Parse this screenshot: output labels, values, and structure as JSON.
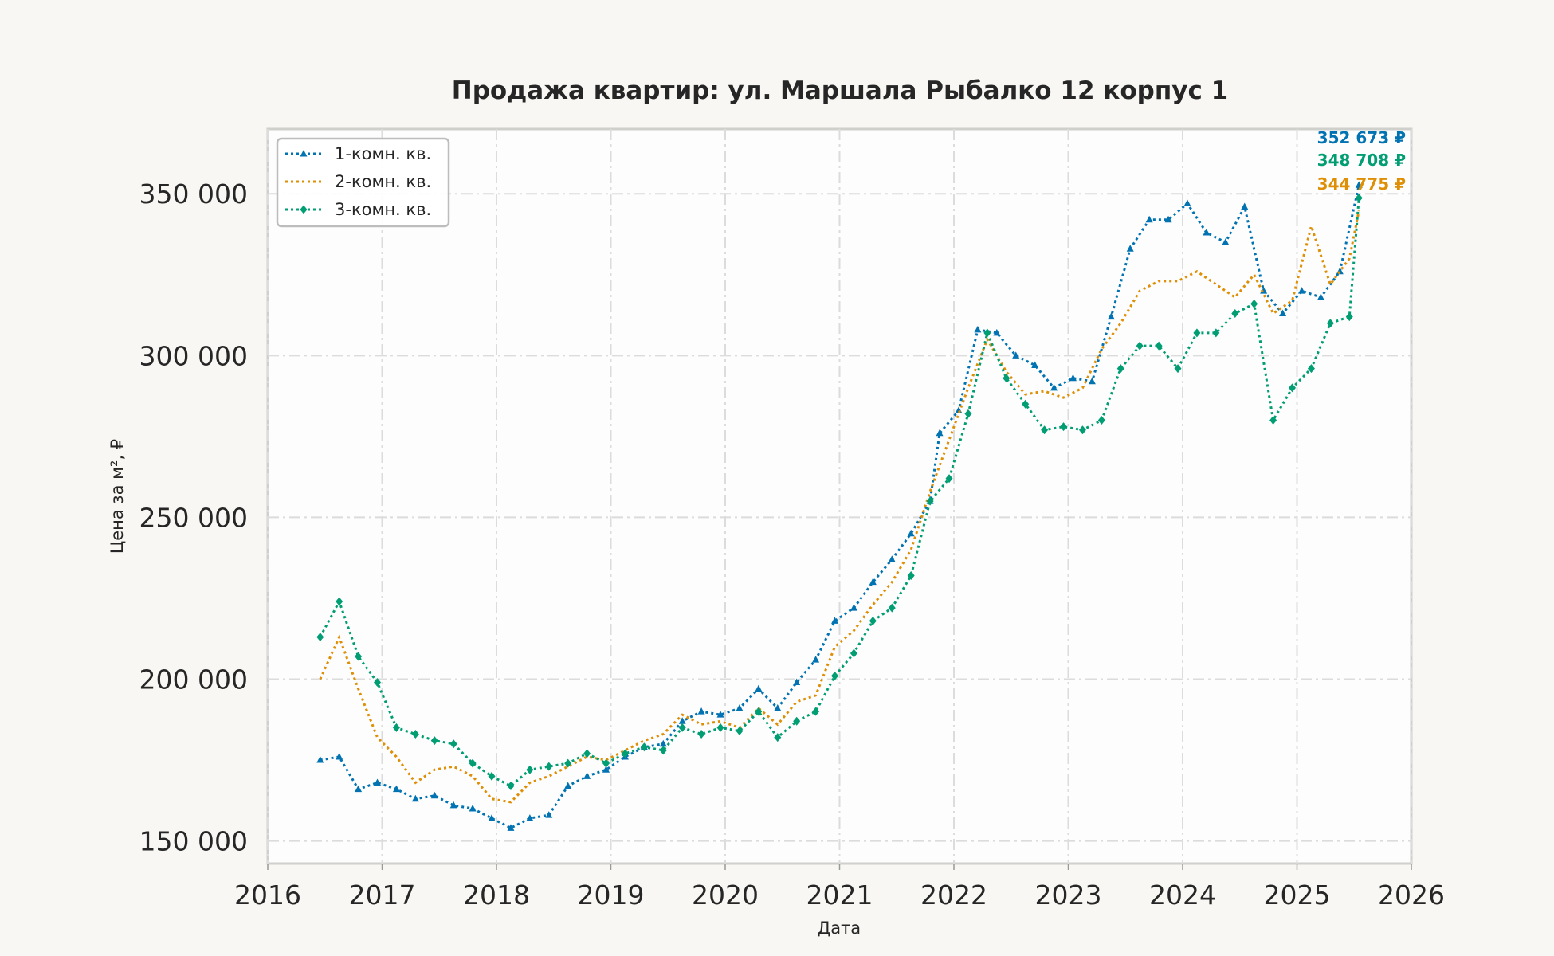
{
  "chart_data": {
    "type": "line",
    "title": "Продажа квартир: ул. Маршала Рыбалко 12 корпус 1",
    "xlabel": "Дата",
    "ylabel": "Цена за м², ₽",
    "xlim": [
      2016,
      2026
    ],
    "ylim": [
      143000,
      370000
    ],
    "x_ticks": [
      "2016",
      "2017",
      "2018",
      "2019",
      "2020",
      "2021",
      "2022",
      "2023",
      "2024",
      "2025",
      "2026"
    ],
    "y_ticks": [
      {
        "value": 150000,
        "label": "150 000"
      },
      {
        "value": 200000,
        "label": "200 000"
      },
      {
        "value": 250000,
        "label": "250 000"
      },
      {
        "value": 300000,
        "label": "300 000"
      },
      {
        "value": 350000,
        "label": "350 000"
      }
    ],
    "grid": true,
    "legend_position": "top-left",
    "series": [
      {
        "name": "1-комн. кв.",
        "color": "#0173b2",
        "marker": "triangle",
        "last_label": "352 673 ₽",
        "x": [
          "2016-06",
          "2016-08",
          "2016-10",
          "2016-12",
          "2017-02",
          "2017-04",
          "2017-06",
          "2017-08",
          "2017-10",
          "2017-12",
          "2018-02",
          "2018-04",
          "2018-06",
          "2018-08",
          "2018-10",
          "2018-12",
          "2019-02",
          "2019-04",
          "2019-06",
          "2019-08",
          "2019-10",
          "2019-12",
          "2020-02",
          "2020-04",
          "2020-06",
          "2020-08",
          "2020-10",
          "2020-12",
          "2021-02",
          "2021-04",
          "2021-06",
          "2021-08",
          "2021-10",
          "2021-11",
          "2022-01",
          "2022-03",
          "2022-05",
          "2022-07",
          "2022-09",
          "2022-11",
          "2023-01",
          "2023-03",
          "2023-05",
          "2023-07",
          "2023-09",
          "2023-11",
          "2024-01",
          "2024-03",
          "2024-05",
          "2024-07",
          "2024-09",
          "2024-11",
          "2025-01",
          "2025-03",
          "2025-05",
          "2025-07"
        ],
        "values": [
          175000,
          176000,
          166000,
          168000,
          166000,
          163000,
          164000,
          161000,
          160000,
          157000,
          154000,
          157000,
          158000,
          167000,
          170000,
          172000,
          176000,
          179000,
          180000,
          187000,
          190000,
          189000,
          191000,
          197000,
          191000,
          199000,
          206000,
          218000,
          222000,
          230000,
          237000,
          245000,
          255000,
          276000,
          283000,
          308000,
          307000,
          300000,
          297000,
          290000,
          293000,
          292000,
          312000,
          333000,
          342000,
          342000,
          347000,
          338000,
          335000,
          346000,
          320000,
          313000,
          320000,
          318000,
          326000,
          352673
        ]
      },
      {
        "name": "2-комн. кв.",
        "color": "#de8f05",
        "marker": "none",
        "last_label": "344 775 ₽",
        "x": [
          "2016-06",
          "2016-08",
          "2016-10",
          "2016-12",
          "2017-02",
          "2017-04",
          "2017-06",
          "2017-08",
          "2017-10",
          "2017-12",
          "2018-02",
          "2018-04",
          "2018-06",
          "2018-08",
          "2018-10",
          "2018-12",
          "2019-02",
          "2019-04",
          "2019-06",
          "2019-08",
          "2019-10",
          "2019-12",
          "2020-02",
          "2020-04",
          "2020-06",
          "2020-08",
          "2020-10",
          "2020-12",
          "2021-02",
          "2021-04",
          "2021-06",
          "2021-08",
          "2021-10",
          "2021-12",
          "2022-02",
          "2022-04",
          "2022-06",
          "2022-08",
          "2022-10",
          "2022-12",
          "2023-02",
          "2023-04",
          "2023-06",
          "2023-08",
          "2023-10",
          "2023-12",
          "2024-02",
          "2024-04",
          "2024-06",
          "2024-08",
          "2024-10",
          "2024-12",
          "2025-02",
          "2025-04",
          "2025-06",
          "2025-07"
        ],
        "values": [
          200000,
          213000,
          197000,
          182000,
          176000,
          168000,
          172000,
          173000,
          170000,
          163000,
          162000,
          168000,
          170000,
          173000,
          176000,
          175000,
          178000,
          181000,
          183000,
          189000,
          186000,
          187000,
          185000,
          191000,
          186000,
          193000,
          195000,
          210000,
          215000,
          223000,
          230000,
          240000,
          258000,
          274000,
          290000,
          305000,
          295000,
          288000,
          289000,
          287000,
          290000,
          302000,
          310000,
          320000,
          323000,
          323000,
          326000,
          322000,
          318000,
          325000,
          313000,
          317000,
          340000,
          322000,
          330000,
          344775
        ]
      },
      {
        "name": "3-комн. кв.",
        "color": "#029e73",
        "marker": "diamond",
        "last_label": "348 708 ₽",
        "x": [
          "2016-06",
          "2016-08",
          "2016-10",
          "2016-12",
          "2017-02",
          "2017-04",
          "2017-06",
          "2017-08",
          "2017-10",
          "2017-12",
          "2018-02",
          "2018-04",
          "2018-06",
          "2018-08",
          "2018-10",
          "2018-12",
          "2019-02",
          "2019-04",
          "2019-06",
          "2019-08",
          "2019-10",
          "2019-12",
          "2020-02",
          "2020-04",
          "2020-06",
          "2020-08",
          "2020-10",
          "2020-12",
          "2021-02",
          "2021-04",
          "2021-06",
          "2021-08",
          "2021-10",
          "2021-12",
          "2022-02",
          "2022-04",
          "2022-06",
          "2022-08",
          "2022-10",
          "2022-12",
          "2023-02",
          "2023-04",
          "2023-06",
          "2023-08",
          "2023-10",
          "2023-12",
          "2024-02",
          "2024-04",
          "2024-06",
          "2024-08",
          "2024-10",
          "2024-12",
          "2025-02",
          "2025-04",
          "2025-06",
          "2025-07"
        ],
        "values": [
          213000,
          224000,
          207000,
          199000,
          185000,
          183000,
          181000,
          180000,
          174000,
          170000,
          167000,
          172000,
          173000,
          174000,
          177000,
          174000,
          177000,
          179000,
          178000,
          185000,
          183000,
          185000,
          184000,
          190000,
          182000,
          187000,
          190000,
          201000,
          208000,
          218000,
          222000,
          232000,
          255000,
          262000,
          282000,
          307000,
          293000,
          285000,
          277000,
          278000,
          277000,
          280000,
          296000,
          303000,
          303000,
          296000,
          307000,
          307000,
          313000,
          316000,
          280000,
          290000,
          296000,
          310000,
          312000,
          348708
        ]
      }
    ]
  }
}
